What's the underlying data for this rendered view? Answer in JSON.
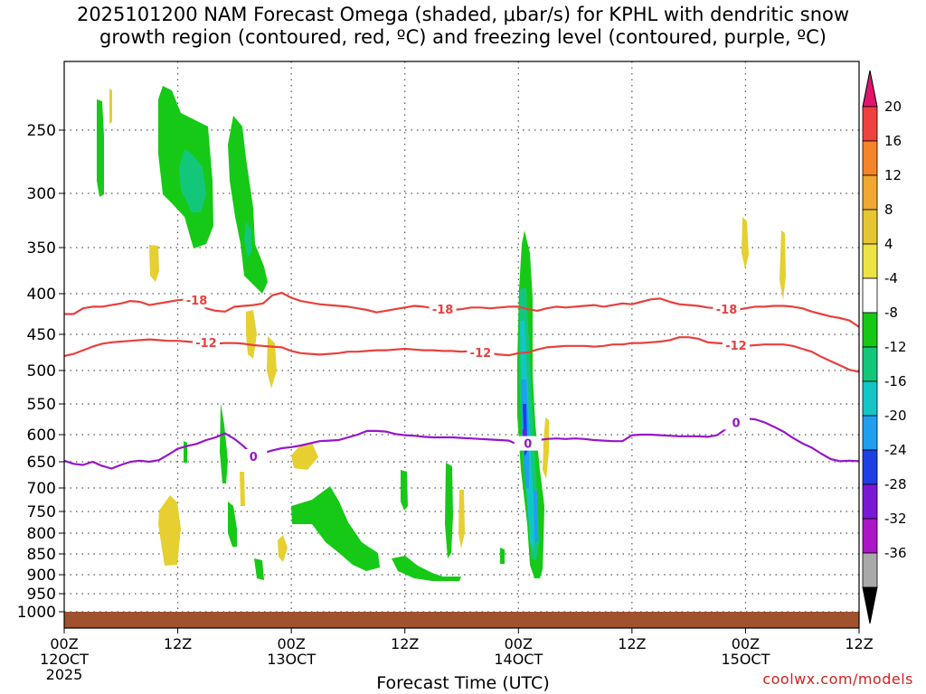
{
  "title": "2025101200 NAM Forecast Omega (shaded, μbar/s) for KPHL with dendritic snow\ngrowth region (contoured, red, ºC) and freezing level (contoured, purple, ºC)",
  "credit": "coolwx.com/models",
  "chart_data": {
    "type": "heatmap",
    "xlabel": "Forecast Time (UTC)",
    "ylabel": "",
    "x_ticks": [
      {
        "hour": 0,
        "lines": [
          "00Z",
          "12OCT",
          "2025"
        ]
      },
      {
        "hour": 12,
        "lines": [
          "12Z"
        ]
      },
      {
        "hour": 24,
        "lines": [
          "00Z",
          "13OCT"
        ]
      },
      {
        "hour": 36,
        "lines": [
          "12Z"
        ]
      },
      {
        "hour": 48,
        "lines": [
          "00Z",
          "14OCT"
        ]
      },
      {
        "hour": 60,
        "lines": [
          "12Z"
        ]
      },
      {
        "hour": 72,
        "lines": [
          "00Z",
          "15OCT"
        ]
      },
      {
        "hour": 84,
        "lines": [
          "12Z"
        ]
      }
    ],
    "xlim": [
      0,
      84
    ],
    "y_ticks": [
      250,
      300,
      350,
      400,
      450,
      500,
      550,
      600,
      650,
      700,
      750,
      800,
      850,
      900,
      950,
      1000
    ],
    "ylim_hpa": [
      1000,
      200
    ],
    "colorbar": {
      "ticks": [
        "20",
        "16",
        "12",
        "8",
        "4",
        "-4",
        "-8",
        "-12",
        "-16",
        "-20",
        "-24",
        "-28",
        "-32",
        "-36"
      ],
      "colors": [
        "#ef4040",
        "#f58327",
        "#f0a830",
        "#e6c630",
        "#ece344",
        "#ffffff",
        "#16c916",
        "#13c77a",
        "#13c6c6",
        "#1e9ff0",
        "#1f3fe6",
        "#7b18d6",
        "#aa16c8",
        "#a9a9a9"
      ],
      "top_arrow": "#e0156b",
      "bottom_arrow": "#000000"
    },
    "contours": [
      {
        "label": "-18",
        "color": "#e8403c",
        "points": [
          [
            0,
            425
          ],
          [
            1,
            425
          ],
          [
            2,
            418
          ],
          [
            3,
            416
          ],
          [
            4,
            416
          ],
          [
            5,
            414
          ],
          [
            6,
            412
          ],
          [
            7,
            409
          ],
          [
            8,
            410
          ],
          [
            9,
            414
          ],
          [
            10,
            412
          ],
          [
            11,
            410
          ],
          [
            12,
            408
          ],
          [
            13,
            407
          ],
          [
            14,
            408
          ],
          [
            15,
            418
          ],
          [
            16,
            421
          ],
          [
            17,
            422
          ],
          [
            18,
            416
          ],
          [
            19,
            415
          ],
          [
            20,
            414
          ],
          [
            21,
            412
          ],
          [
            22,
            402
          ],
          [
            23,
            399
          ],
          [
            24,
            405
          ],
          [
            25,
            409
          ],
          [
            26,
            411
          ],
          [
            27,
            413
          ],
          [
            28,
            414
          ],
          [
            29,
            415
          ],
          [
            30,
            416
          ],
          [
            31,
            418
          ],
          [
            32,
            420
          ],
          [
            33,
            423
          ],
          [
            34,
            421
          ],
          [
            35,
            419
          ],
          [
            36,
            417
          ],
          [
            37,
            415
          ],
          [
            38,
            416
          ],
          [
            39,
            418
          ],
          [
            40,
            419
          ],
          [
            41,
            420
          ],
          [
            42,
            419
          ],
          [
            43,
            417
          ],
          [
            44,
            417
          ],
          [
            45,
            418
          ],
          [
            46,
            417
          ],
          [
            47,
            416
          ],
          [
            48,
            416
          ],
          [
            49,
            419
          ],
          [
            50,
            421
          ],
          [
            51,
            418
          ],
          [
            52,
            416
          ],
          [
            53,
            417
          ],
          [
            54,
            416
          ],
          [
            55,
            415
          ],
          [
            56,
            414
          ],
          [
            57,
            416
          ],
          [
            58,
            414
          ],
          [
            59,
            412
          ],
          [
            60,
            413
          ],
          [
            61,
            410
          ],
          [
            62,
            407
          ],
          [
            63,
            406
          ],
          [
            64,
            410
          ],
          [
            65,
            413
          ],
          [
            66,
            414
          ],
          [
            67,
            415
          ],
          [
            68,
            417
          ],
          [
            69,
            418
          ],
          [
            70,
            419
          ],
          [
            71,
            420
          ],
          [
            72,
            418
          ],
          [
            73,
            416
          ],
          [
            74,
            416
          ],
          [
            75,
            415
          ],
          [
            76,
            415
          ],
          [
            77,
            416
          ],
          [
            78,
            418
          ],
          [
            79,
            422
          ],
          [
            80,
            425
          ],
          [
            81,
            428
          ],
          [
            82,
            430
          ],
          [
            83,
            433
          ],
          [
            84,
            441
          ]
        ]
      },
      {
        "label": "-12",
        "color": "#e8403c",
        "points": [
          [
            0,
            480
          ],
          [
            1,
            477
          ],
          [
            2,
            472
          ],
          [
            3,
            467
          ],
          [
            4,
            463
          ],
          [
            5,
            461
          ],
          [
            6,
            460
          ],
          [
            7,
            459
          ],
          [
            8,
            458
          ],
          [
            9,
            457
          ],
          [
            10,
            458
          ],
          [
            11,
            459
          ],
          [
            12,
            459
          ],
          [
            13,
            460
          ],
          [
            14,
            461
          ],
          [
            15,
            461
          ],
          [
            16,
            463
          ],
          [
            17,
            462
          ],
          [
            18,
            462
          ],
          [
            19,
            463
          ],
          [
            20,
            465
          ],
          [
            21,
            466
          ],
          [
            22,
            467
          ],
          [
            23,
            468
          ],
          [
            24,
            473
          ],
          [
            25,
            476
          ],
          [
            26,
            477
          ],
          [
            27,
            478
          ],
          [
            28,
            477
          ],
          [
            29,
            476
          ],
          [
            30,
            474
          ],
          [
            31,
            474
          ],
          [
            32,
            473
          ],
          [
            33,
            472
          ],
          [
            34,
            472
          ],
          [
            35,
            471
          ],
          [
            36,
            470
          ],
          [
            37,
            471
          ],
          [
            38,
            472
          ],
          [
            39,
            472
          ],
          [
            40,
            473
          ],
          [
            41,
            473
          ],
          [
            42,
            474
          ],
          [
            43,
            473
          ],
          [
            44,
            475
          ],
          [
            45,
            476
          ],
          [
            46,
            478
          ],
          [
            47,
            479
          ],
          [
            48,
            476
          ],
          [
            49,
            475
          ],
          [
            50,
            471
          ],
          [
            51,
            468
          ],
          [
            52,
            467
          ],
          [
            53,
            466
          ],
          [
            54,
            466
          ],
          [
            55,
            466
          ],
          [
            56,
            467
          ],
          [
            57,
            466
          ],
          [
            58,
            464
          ],
          [
            59,
            464
          ],
          [
            60,
            462
          ],
          [
            61,
            462
          ],
          [
            62,
            461
          ],
          [
            63,
            460
          ],
          [
            64,
            458
          ],
          [
            65,
            454
          ],
          [
            66,
            454
          ],
          [
            67,
            456
          ],
          [
            68,
            461
          ],
          [
            69,
            462
          ],
          [
            70,
            463
          ],
          [
            71,
            465
          ],
          [
            72,
            466
          ],
          [
            73,
            465
          ],
          [
            74,
            464
          ],
          [
            75,
            464
          ],
          [
            76,
            464
          ],
          [
            77,
            466
          ],
          [
            78,
            470
          ],
          [
            79,
            474
          ],
          [
            80,
            481
          ],
          [
            81,
            487
          ],
          [
            82,
            493
          ],
          [
            83,
            499
          ],
          [
            84,
            502
          ]
        ]
      },
      {
        "label": "0",
        "color": "#9616c8",
        "points": [
          [
            0,
            648
          ],
          [
            1,
            654
          ],
          [
            2,
            656
          ],
          [
            3,
            650
          ],
          [
            4,
            658
          ],
          [
            5,
            663
          ],
          [
            6,
            656
          ],
          [
            7,
            650
          ],
          [
            8,
            648
          ],
          [
            9,
            650
          ],
          [
            10,
            647
          ],
          [
            11,
            637
          ],
          [
            12,
            626
          ],
          [
            13,
            621
          ],
          [
            14,
            617
          ],
          [
            15,
            610
          ],
          [
            16,
            605
          ],
          [
            17,
            598
          ],
          [
            18,
            608
          ],
          [
            19,
            622
          ],
          [
            20,
            640
          ],
          [
            21,
            634
          ],
          [
            22,
            629
          ],
          [
            23,
            625
          ],
          [
            24,
            623
          ],
          [
            25,
            620
          ],
          [
            26,
            616
          ],
          [
            27,
            612
          ],
          [
            28,
            611
          ],
          [
            29,
            610
          ],
          [
            30,
            605
          ],
          [
            31,
            600
          ],
          [
            32,
            594
          ],
          [
            33,
            594
          ],
          [
            34,
            595
          ],
          [
            35,
            599
          ],
          [
            36,
            601
          ],
          [
            37,
            602
          ],
          [
            38,
            604
          ],
          [
            39,
            605
          ],
          [
            40,
            605
          ],
          [
            41,
            605
          ],
          [
            42,
            606
          ],
          [
            43,
            607
          ],
          [
            44,
            608
          ],
          [
            45,
            609
          ],
          [
            46,
            610
          ],
          [
            47,
            611
          ],
          [
            48,
            619
          ],
          [
            49,
            616
          ],
          [
            50,
            610
          ],
          [
            51,
            608
          ],
          [
            52,
            607
          ],
          [
            53,
            608
          ],
          [
            54,
            607
          ],
          [
            55,
            608
          ],
          [
            56,
            610
          ],
          [
            57,
            611
          ],
          [
            58,
            612
          ],
          [
            59,
            612
          ],
          [
            60,
            601
          ],
          [
            61,
            600
          ],
          [
            62,
            600
          ],
          [
            63,
            601
          ],
          [
            64,
            602
          ],
          [
            65,
            603
          ],
          [
            66,
            603
          ],
          [
            67,
            603
          ],
          [
            68,
            604
          ],
          [
            69,
            601
          ],
          [
            70,
            590
          ],
          [
            71,
            580
          ],
          [
            72,
            574
          ],
          [
            73,
            575
          ],
          [
            74,
            580
          ],
          [
            75,
            587
          ],
          [
            76,
            595
          ],
          [
            77,
            606
          ],
          [
            78,
            616
          ],
          [
            79,
            624
          ],
          [
            80,
            635
          ],
          [
            81,
            645
          ],
          [
            82,
            649
          ],
          [
            83,
            648
          ],
          [
            84,
            649
          ]
        ]
      }
    ]
  }
}
